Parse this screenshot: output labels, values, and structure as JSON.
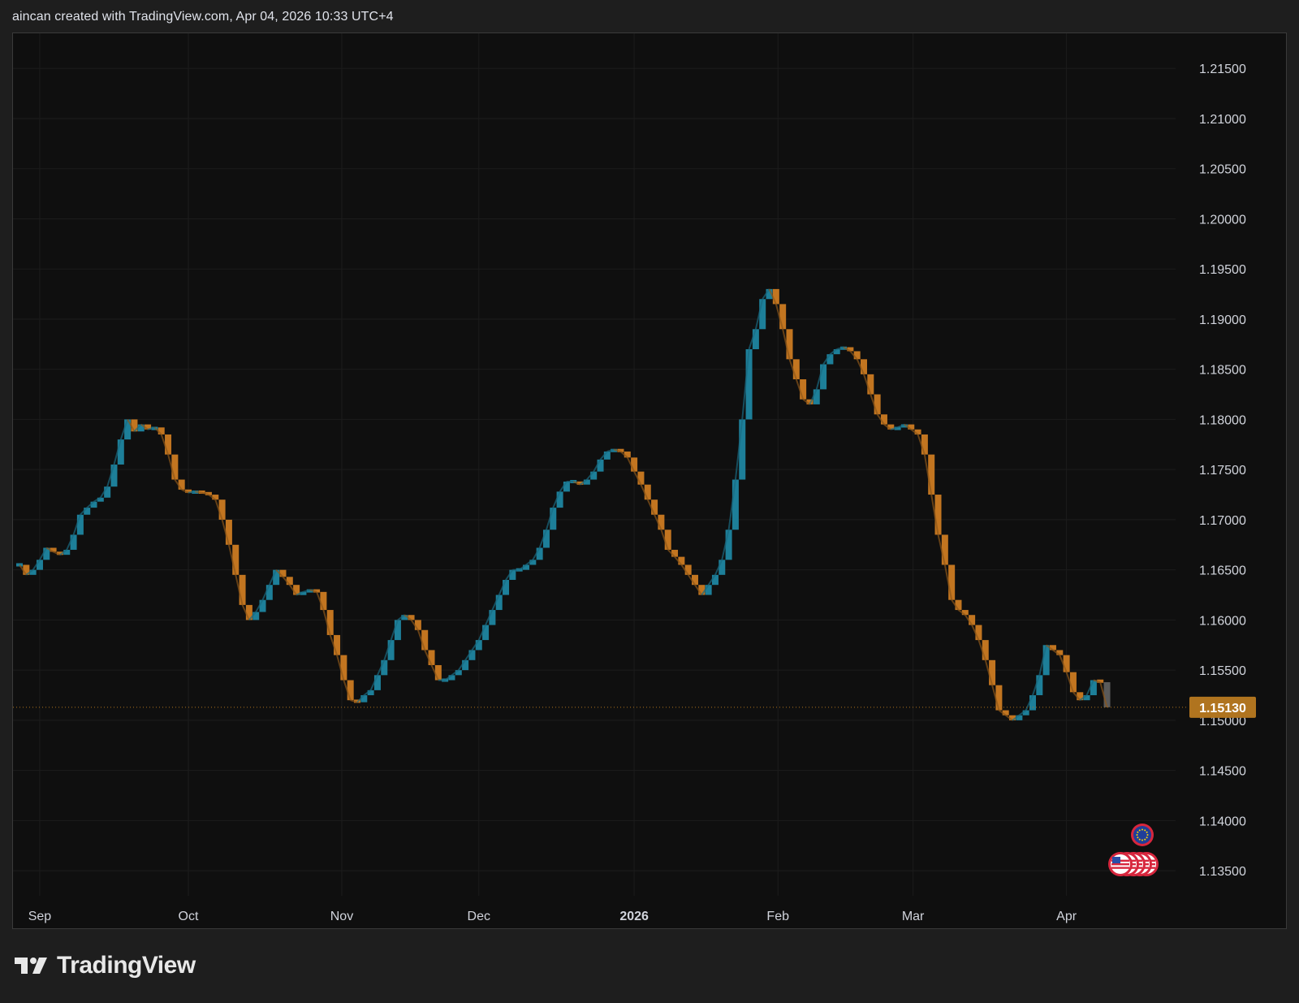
{
  "header": {
    "text": "aincan created with TradingView.com, Apr 04, 2026 10:33 UTC+4"
  },
  "footer": {
    "brand": "TradingView"
  },
  "colors": {
    "background": "#0f0f0f",
    "frame": "#1e1e1e",
    "up": "#1d7f99",
    "down": "#c27520",
    "neutral": "#5a5a5a",
    "price_tag": "#b0741f",
    "grid": "#1c1c1c"
  },
  "chart_data": {
    "type": "line",
    "symbol": "EURUSD",
    "timeframe": "1D",
    "price_axis": {
      "ticks": [
        "1.21500",
        "1.21000",
        "1.20500",
        "1.20000",
        "1.19500",
        "1.19000",
        "1.18500",
        "1.18000",
        "1.17500",
        "1.17000",
        "1.16500",
        "1.16000",
        "1.15500",
        "1.15000",
        "1.14500",
        "1.14000",
        "1.13500"
      ],
      "ylim": [
        1.1325,
        1.2185
      ]
    },
    "time_axis": {
      "labels": [
        {
          "text": "Sep",
          "date": "2025-09-01",
          "bold": false
        },
        {
          "text": "Oct",
          "date": "2025-10-01",
          "bold": false
        },
        {
          "text": "Nov",
          "date": "2025-11-01",
          "bold": false
        },
        {
          "text": "Dec",
          "date": "2025-12-01",
          "bold": false
        },
        {
          "text": "2026",
          "date": "2026-01-01",
          "bold": true
        },
        {
          "text": "Feb",
          "date": "2026-02-01",
          "bold": false
        },
        {
          "text": "Mar",
          "date": "2026-03-01",
          "bold": false
        },
        {
          "text": "Apr",
          "date": "2026-04-01",
          "bold": false
        }
      ]
    },
    "last_price": {
      "label": "1.15130",
      "value": 1.1513
    },
    "closes": [
      1.1655,
      1.1645,
      1.165,
      1.166,
      1.1672,
      1.1668,
      1.1665,
      1.167,
      1.1685,
      1.1705,
      1.1712,
      1.1718,
      1.1722,
      1.1733,
      1.1755,
      1.178,
      1.18,
      1.1788,
      1.1795,
      1.179,
      1.1792,
      1.1785,
      1.1765,
      1.174,
      1.173,
      1.1727,
      1.1728,
      1.1727,
      1.1725,
      1.172,
      1.17,
      1.1675,
      1.1645,
      1.1615,
      1.16,
      1.1608,
      1.162,
      1.1635,
      1.165,
      1.1643,
      1.1635,
      1.1625,
      1.1628,
      1.163,
      1.1628,
      1.161,
      1.1585,
      1.1565,
      1.154,
      1.152,
      1.1518,
      1.1525,
      1.153,
      1.1545,
      1.156,
      1.158,
      1.16,
      1.1605,
      1.16,
      1.159,
      1.157,
      1.1555,
      1.154,
      1.154,
      1.1545,
      1.155,
      1.156,
      1.157,
      1.158,
      1.1595,
      1.161,
      1.1625,
      1.164,
      1.165,
      1.165,
      1.1655,
      1.166,
      1.1672,
      1.169,
      1.1712,
      1.1728,
      1.1738,
      1.1738,
      1.1735,
      1.174,
      1.1748,
      1.176,
      1.1768,
      1.177,
      1.1768,
      1.1762,
      1.1748,
      1.1735,
      1.172,
      1.1705,
      1.169,
      1.167,
      1.1663,
      1.1655,
      1.1645,
      1.1635,
      1.1625,
      1.1635,
      1.1645,
      1.166,
      1.169,
      1.174,
      1.18,
      1.187,
      1.189,
      1.192,
      1.193,
      1.1915,
      1.189,
      1.186,
      1.184,
      1.182,
      1.1815,
      1.183,
      1.1855,
      1.1865,
      1.187,
      1.1872,
      1.1868,
      1.186,
      1.1845,
      1.1825,
      1.1805,
      1.1795,
      1.179,
      1.1792,
      1.1795,
      1.179,
      1.1785,
      1.1765,
      1.1725,
      1.1685,
      1.1655,
      1.162,
      1.161,
      1.1605,
      1.1595,
      1.158,
      1.156,
      1.1535,
      1.151,
      1.1505,
      1.15,
      1.1505,
      1.151,
      1.1525,
      1.1545,
      1.1575,
      1.157,
      1.1565,
      1.1548,
      1.1528,
      1.152,
      1.1525,
      1.154,
      1.1538,
      1.1513
    ],
    "first_date": "2025-08-27",
    "legend": ""
  },
  "event_markers": [
    {
      "icon": "eu-flag-icon",
      "count": 1,
      "row": 1
    },
    {
      "icon": "us-flag-icon",
      "count": 5,
      "row": 2
    }
  ]
}
